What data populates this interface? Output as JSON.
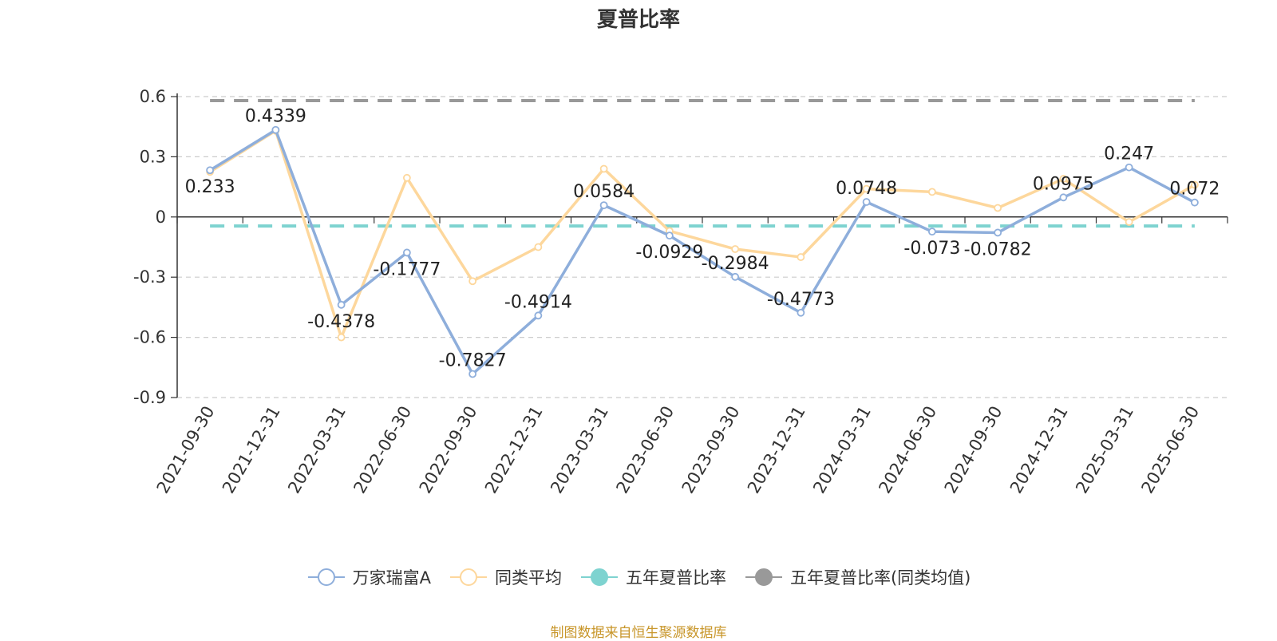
{
  "source_note": "制图数据来自恒生聚源数据库",
  "chart_data": {
    "type": "line",
    "title": "夏普比率",
    "categories": [
      "2021-09-30",
      "2021-12-31",
      "2022-03-31",
      "2022-06-30",
      "2022-09-30",
      "2022-12-31",
      "2023-03-31",
      "2023-06-30",
      "2023-09-30",
      "2023-12-31",
      "2024-03-31",
      "2024-06-30",
      "2024-09-30",
      "2024-12-31",
      "2025-03-31",
      "2025-06-30"
    ],
    "ylim": [
      -0.9,
      0.6
    ],
    "yticks": [
      "0.6",
      "0.3",
      "0",
      "-0.3",
      "-0.6",
      "-0.9"
    ],
    "grid": true,
    "legend_position": "bottom",
    "series": [
      {
        "name": "万家瑞富A",
        "color": "#8eaedb",
        "values": [
          0.233,
          0.4339,
          -0.4378,
          -0.1777,
          -0.7827,
          -0.4914,
          0.0584,
          -0.0929,
          -0.2984,
          -0.4773,
          0.0748,
          -0.073,
          -0.0782,
          0.0975,
          0.247,
          0.072
        ],
        "labels": [
          "0.233",
          "0.4339",
          "-0.4378",
          "-0.1777",
          "-0.7827",
          "-0.4914",
          "0.0584",
          "-0.0929",
          "-0.2984",
          "-0.4773",
          "0.0748",
          "-0.073",
          "-0.0782",
          "0.0975",
          "0.247",
          "0.072"
        ]
      },
      {
        "name": "同类平均",
        "color": "#fdd79c",
        "values": [
          0.225,
          0.43,
          -0.6,
          0.195,
          -0.32,
          -0.15,
          0.24,
          -0.07,
          -0.16,
          -0.2,
          0.14,
          0.125,
          0.045,
          0.19,
          -0.025,
          0.16
        ]
      },
      {
        "name": "五年夏普比率",
        "color": "#7ed3d0",
        "dashed": true,
        "value": -0.045
      },
      {
        "name": "五年夏普比率(同类均值)",
        "color": "#999999",
        "dashed": true,
        "value": 0.58
      }
    ]
  }
}
